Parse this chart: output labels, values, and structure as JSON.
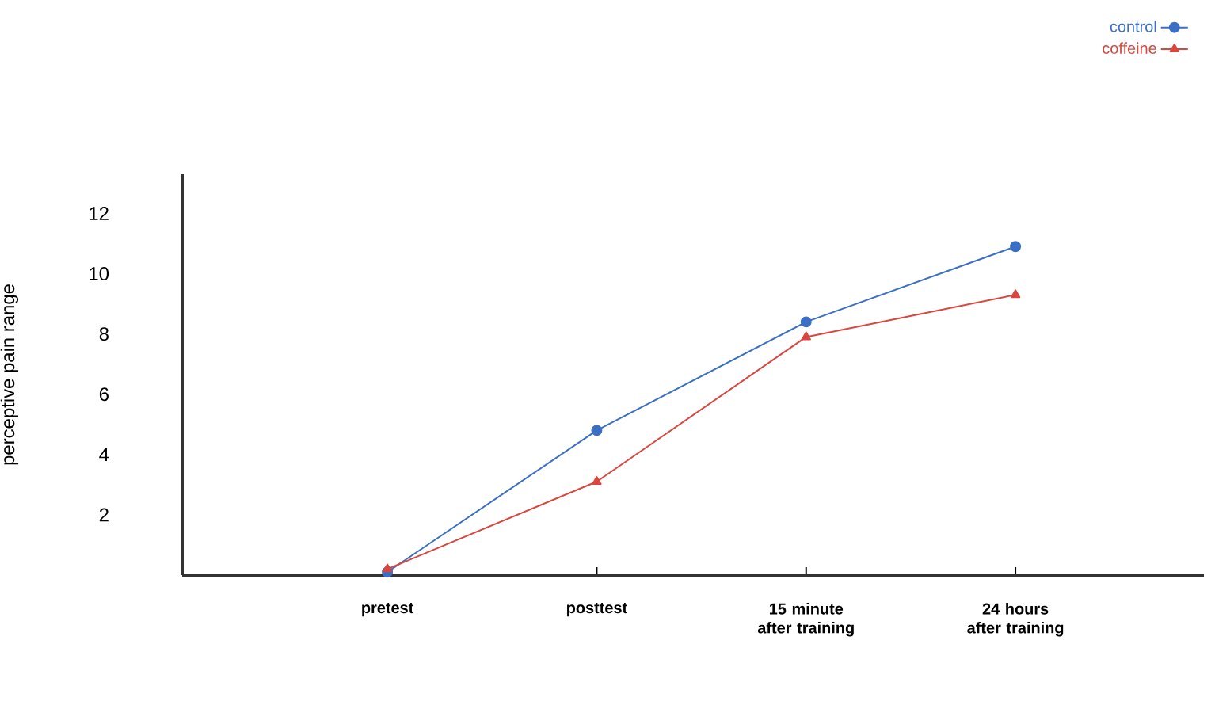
{
  "chart_data": {
    "type": "line",
    "ylabel": "perceptive pain range",
    "categories": [
      "pretest",
      "posttest",
      "15 minute after training",
      "24 hours after training"
    ],
    "series": [
      {
        "name": "control",
        "color": "#3a6fc4",
        "marker": "circle",
        "values": [
          0.1,
          4.8,
          8.4,
          10.9
        ]
      },
      {
        "name": "coffeine",
        "color": "#d8463e",
        "marker": "triangle",
        "values": [
          0.2,
          3.1,
          7.9,
          9.3
        ]
      }
    ],
    "ylim": [
      0,
      13.3
    ],
    "yticks": [
      2,
      4,
      6,
      8,
      10,
      12
    ],
    "legend": "top right",
    "grid": false
  }
}
